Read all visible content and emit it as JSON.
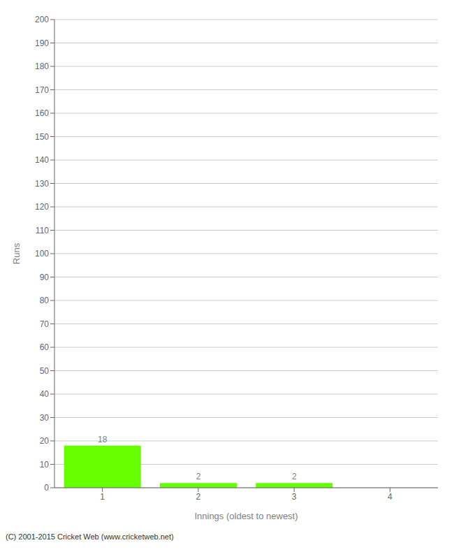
{
  "chart_data": {
    "type": "bar",
    "categories": [
      1,
      2,
      3,
      4
    ],
    "values": [
      18,
      2,
      2,
      0
    ],
    "color": "#66ff00",
    "xlabel": "Innings (oldest to newest)",
    "ylabel": "Runs",
    "ylim": [
      0,
      200
    ],
    "yticks": [
      0,
      10,
      20,
      30,
      40,
      50,
      60,
      70,
      80,
      90,
      100,
      110,
      120,
      130,
      140,
      150,
      160,
      170,
      180,
      190,
      200
    ],
    "grid": true,
    "data_labels": true,
    "annotations": [
      "(C) 2001-2015 Cricket Web (www.cricketweb.net)"
    ]
  }
}
